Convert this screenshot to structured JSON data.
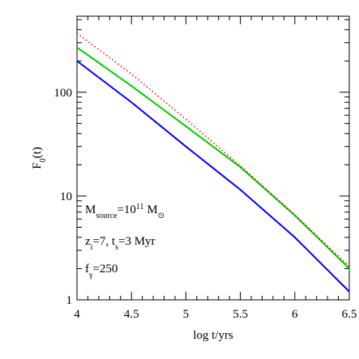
{
  "chart_data": {
    "type": "line",
    "xlabel": "log t/yrs",
    "ylabel": "F0(t)",
    "ylabel_parts": [
      {
        "text": "F"
      },
      {
        "text": "0",
        "shift": "sub"
      },
      {
        "text": "(t)"
      }
    ],
    "x": [
      4,
      4.5,
      5,
      5.5,
      6,
      6.5
    ],
    "series": [
      {
        "color": "#0000ff",
        "style": "solid",
        "values": [
          200,
          80,
          30,
          11.5,
          4,
          1.2
        ]
      },
      {
        "color": "#00cc00",
        "style": "solid",
        "values": [
          270,
          115,
          47,
          19,
          6.5,
          2.0
        ]
      },
      {
        "color": "#ff0000",
        "style": "dotted",
        "values": [
          370,
          150,
          55,
          19.5,
          6.6,
          2.1
        ]
      }
    ],
    "xlim": [
      4,
      6.5
    ],
    "xticks": [
      4,
      4.5,
      5,
      5.5,
      6,
      6.5
    ],
    "xminorticks": [
      4.1,
      4.2,
      4.3,
      4.4,
      4.6,
      4.7,
      4.8,
      4.9,
      5.1,
      5.2,
      5.3,
      5.4,
      5.6,
      5.7,
      5.8,
      5.9,
      6.1,
      6.2,
      6.3,
      6.4
    ],
    "ylim": [
      1,
      540
    ],
    "ylog": true,
    "yticks": [
      1,
      10,
      100
    ],
    "yminorticks": [
      2,
      3,
      4,
      5,
      6,
      7,
      8,
      9,
      20,
      30,
      40,
      50,
      60,
      70,
      80,
      90,
      200,
      300,
      400,
      500
    ],
    "annotations": [
      [
        {
          "text": "M"
        },
        {
          "text": "source",
          "shift": "sub"
        },
        {
          "text": "=10"
        },
        {
          "text": "11",
          "shift": "sup"
        },
        {
          "text": " M"
        },
        {
          "text": "⊙",
          "shift": "sub"
        }
      ],
      [
        {
          "text": "z"
        },
        {
          "text": "i",
          "shift": "sub"
        },
        {
          "text": "=7, t"
        },
        {
          "text": "s",
          "shift": "sub"
        },
        {
          "text": "=3 Myr"
        }
      ],
      [
        {
          "text": "f"
        },
        {
          "text": "γ",
          "shift": "sub"
        },
        {
          "text": "=250"
        }
      ]
    ]
  }
}
